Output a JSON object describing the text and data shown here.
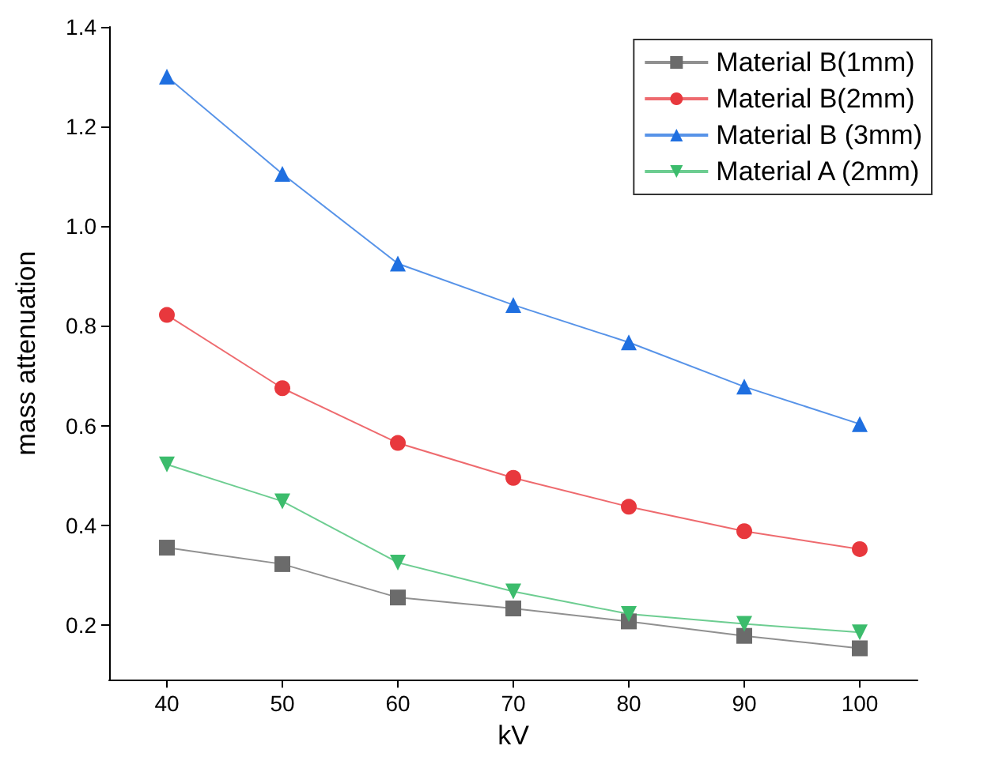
{
  "chart_data": {
    "type": "line",
    "xlabel": "kV",
    "ylabel": "mass attenuation",
    "x": [
      40,
      50,
      60,
      70,
      80,
      90,
      100
    ],
    "xlim": [
      35,
      105
    ],
    "xticks": [
      40,
      50,
      60,
      70,
      80,
      90,
      100
    ],
    "ylim": [
      0.09,
      1.4
    ],
    "yticks": [
      {
        "value": 0.2,
        "label": "0.2"
      },
      {
        "value": 0.4,
        "label": "0.4"
      },
      {
        "value": 0.6,
        "label": "0.6"
      },
      {
        "value": 0.8,
        "label": "0.8"
      },
      {
        "value": 1.0,
        "label": "1.0"
      },
      {
        "value": 1.2,
        "label": "1.2"
      },
      {
        "value": 1.4,
        "label": "1.4"
      }
    ],
    "grid": false,
    "legend": "top right",
    "line_style": "solid",
    "series": [
      {
        "name": "Material B(1mm)",
        "color": "#6b6b6b",
        "marker": "square",
        "values": [
          0.355,
          0.322,
          0.255,
          0.233,
          0.207,
          0.178,
          0.153
        ]
      },
      {
        "name": "Material B(2mm)",
        "color": "#e8383d",
        "marker": "circle",
        "values": [
          0.822,
          0.675,
          0.565,
          0.495,
          0.437,
          0.388,
          0.352
        ]
      },
      {
        "name": "Material B (3mm)",
        "color": "#1f6fe0",
        "marker": "triangle",
        "values": [
          1.3,
          1.105,
          0.925,
          0.842,
          0.767,
          0.678,
          0.603
        ]
      },
      {
        "name": "Material A (2mm)",
        "color": "#3cbc6c",
        "marker": "triangle-down",
        "values": [
          0.522,
          0.448,
          0.325,
          0.267,
          0.222,
          0.202,
          0.185
        ]
      }
    ]
  }
}
